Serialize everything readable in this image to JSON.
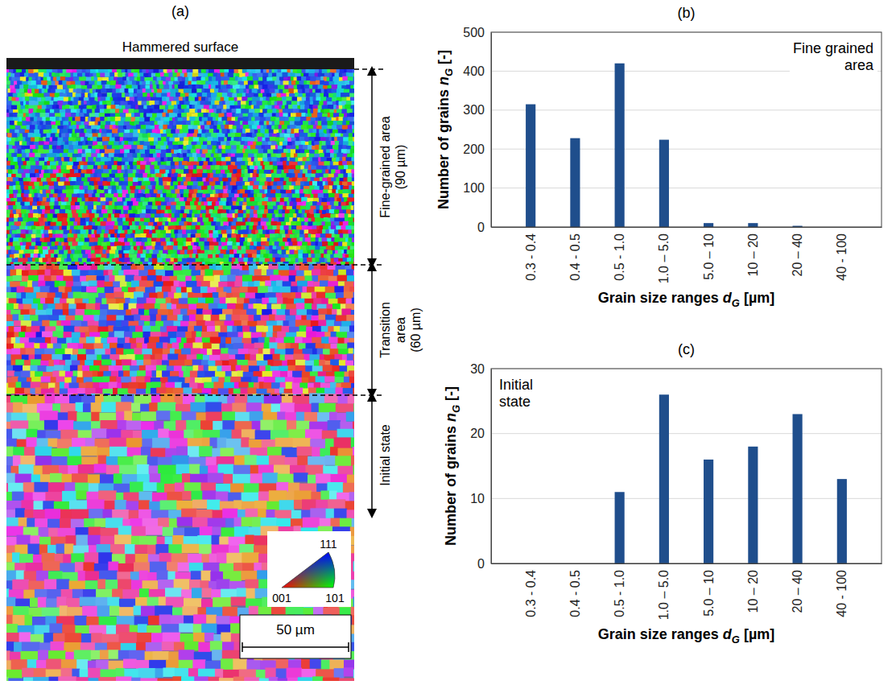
{
  "micrograph": {
    "title": "(a)",
    "surface_label": "Hammered surface",
    "zones": [
      [
        "Fine-grained area",
        "(90 µm)"
      ],
      [
        "Transition",
        "area",
        "(60 µm)"
      ],
      [
        "Initial state"
      ]
    ],
    "ipf_corners": {
      "top": "111",
      "left": "001",
      "right": "101"
    },
    "scale_bar": "50 µm"
  },
  "chart_data": [
    {
      "type": "bar",
      "title": "(b)",
      "annotation": [
        "Fine grained",
        "area"
      ],
      "xlabel": [
        "Grain size ranges ",
        "d",
        "G",
        " [µm]"
      ],
      "ylabel": [
        "Number of grains ",
        "n",
        "G",
        " [-]"
      ],
      "categories": [
        "0.3 - 0.4",
        "0.4 - 0.5",
        "0.5 - 1.0",
        "1.0 – 5.0",
        "5.0 – 10",
        "10 – 20",
        "20 – 40",
        "40 - 100"
      ],
      "values": [
        315,
        228,
        420,
        224,
        10,
        10,
        3,
        0
      ],
      "color": "#1f4e8c",
      "ylim": [
        0,
        500
      ],
      "yticks": [
        0,
        100,
        200,
        300,
        400,
        500
      ],
      "grid": true
    },
    {
      "type": "bar",
      "title": "(c)",
      "annotation": [
        "Initial",
        "state"
      ],
      "xlabel": [
        "Grain size ranges ",
        "d",
        "G",
        " [µm]"
      ],
      "ylabel": [
        "Number of grains ",
        "n",
        "G",
        " [-]"
      ],
      "categories": [
        "0.3 - 0.4",
        "0.4 - 0.5",
        "0.5 - 1.0",
        "1.0 – 5.0",
        "5.0 – 10",
        "10 – 20",
        "20 – 40",
        "40 - 100"
      ],
      "values": [
        0,
        0,
        11,
        26,
        16,
        18,
        23,
        13
      ],
      "color": "#1f4e8c",
      "ylim": [
        0,
        30
      ],
      "yticks": [
        0,
        10,
        20,
        30
      ],
      "grid": true
    }
  ]
}
